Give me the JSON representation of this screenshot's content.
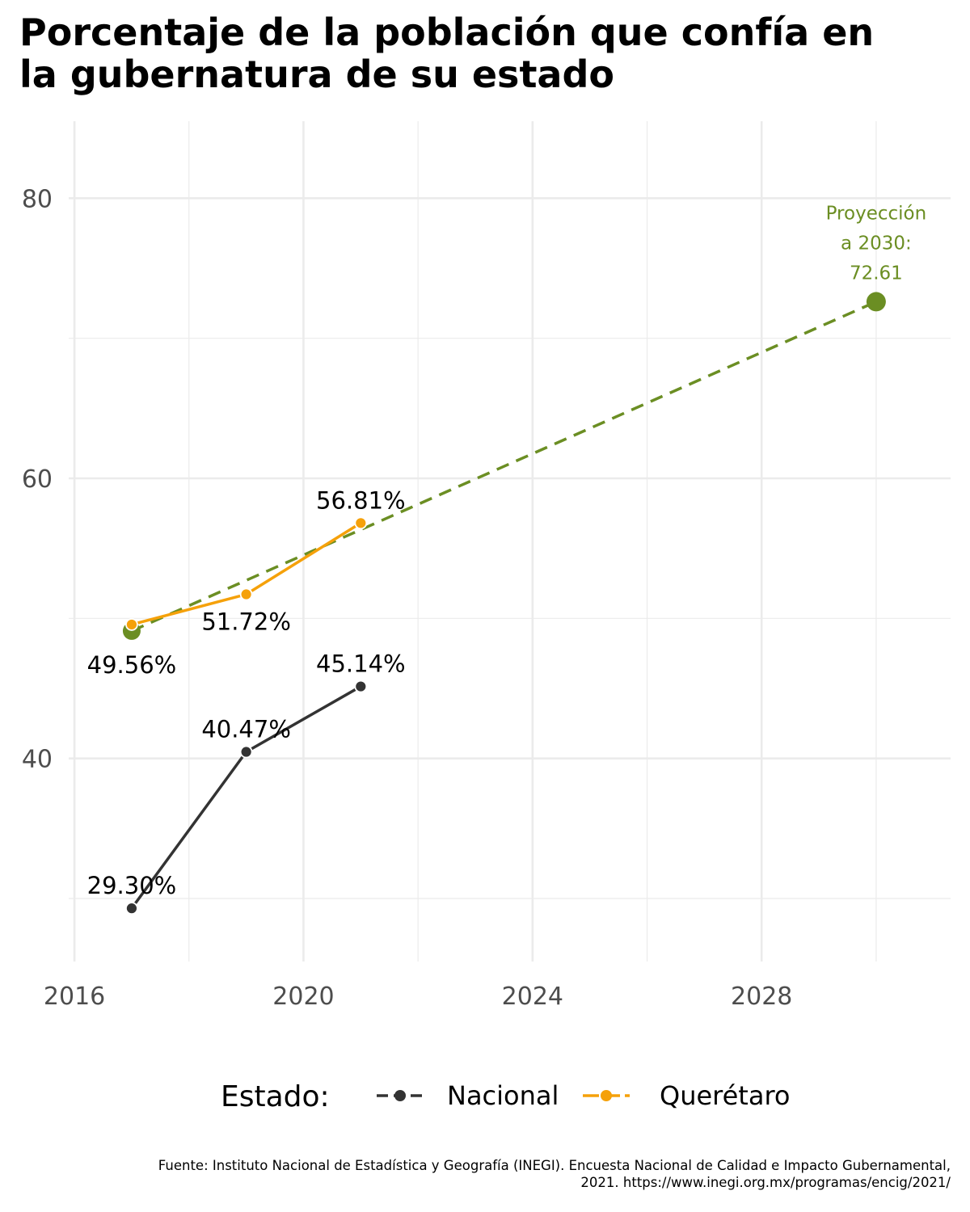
{
  "title_line1": "Porcentaje de la población que confía en",
  "title_line2": "la gubernatura de su estado",
  "caption_line1": "Fuente: Instituto Nacional de Estadística y Geografía (INEGI). Encuesta Nacional de Calidad e Impacto Gubernamental,",
  "caption_line2": "2021. https://www.inegi.org.mx/programas/encig/2021/",
  "colors": {
    "nacional": "#333333",
    "queretaro": "#f5a10a",
    "projection": "#6b8e23",
    "grid": "#ebebeb"
  },
  "chart_data": {
    "type": "line",
    "xlabel": "",
    "ylabel": "",
    "xlim": [
      2015.9,
      2031.3
    ],
    "ylim": [
      25.5,
      85.5
    ],
    "x_ticks": [
      2016,
      2020,
      2024,
      2028
    ],
    "y_ticks": [
      40,
      60,
      80
    ],
    "grid": true,
    "legend": {
      "title": "Estado:",
      "placement": "bottom",
      "entries": [
        "Nacional",
        "Querétaro"
      ]
    },
    "series": [
      {
        "name": "Nacional",
        "color": "#333333",
        "x": [
          2017,
          2019,
          2021
        ],
        "y": [
          29.3,
          40.47,
          45.14
        ],
        "labels": [
          "29.30%",
          "40.47%",
          "45.14%"
        ]
      },
      {
        "name": "Querétaro",
        "color": "#f5a10a",
        "x": [
          2017,
          2019,
          2021
        ],
        "y": [
          49.56,
          51.72,
          56.81
        ],
        "labels": [
          "49.56%",
          "51.72%",
          "56.81%"
        ]
      }
    ],
    "projection": {
      "color": "#6b8e23",
      "style": "dashed",
      "x": [
        2017,
        2030
      ],
      "y": [
        49.1,
        72.61
      ],
      "annotation": [
        "Proyección",
        "a 2030:",
        "72.61"
      ]
    }
  }
}
